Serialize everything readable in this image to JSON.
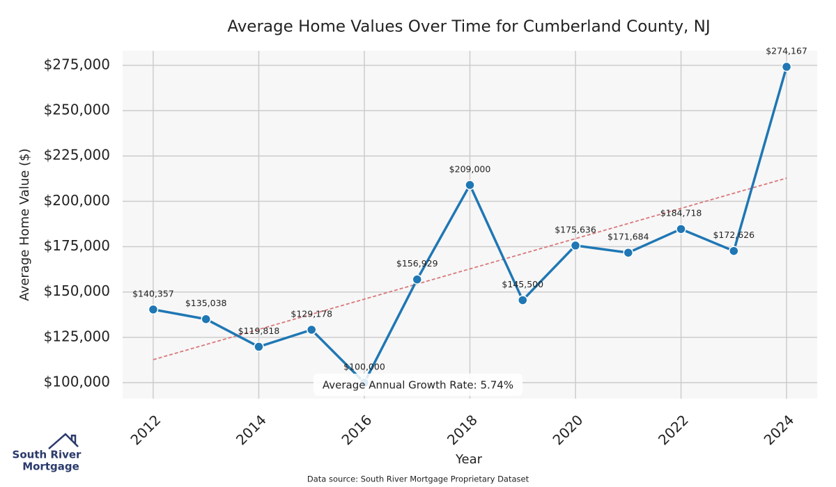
{
  "chart_data": {
    "type": "line",
    "title": "Average Home Values Over Time for Cumberland County, NJ",
    "x_label": "Year",
    "y_label": "Average Home Value ($)",
    "x": [
      2012,
      2013,
      2014,
      2015,
      2016,
      2017,
      2018,
      2019,
      2020,
      2021,
      2022,
      2023,
      2024
    ],
    "values": [
      140357,
      135038,
      119818,
      129178,
      100000,
      156929,
      209000,
      145500,
      175636,
      171684,
      184718,
      172626,
      274167
    ],
    "value_labels": [
      "$140,357",
      "$135,038",
      "$119,818",
      "$129,178",
      "$100,000",
      "$156,929",
      "$209,000",
      "$145,500",
      "$175,636",
      "$171,684",
      "$184,718",
      "$172,626",
      "$274,167"
    ],
    "color": "#1f77b4",
    "trend": {
      "x": [
        2012,
        2024
      ],
      "values": [
        112700,
        212800
      ],
      "color": "#d9777a"
    },
    "annotation": "Average Annual Growth Rate: 5.74%",
    "xlim": [
      2011.42,
      2024.58
    ],
    "xticks": [
      2012,
      2014,
      2016,
      2018,
      2020,
      2022,
      2024
    ],
    "ylim": [
      91200,
      283000
    ],
    "yticks": [
      {
        "value": 100000,
        "label": "$100,000"
      },
      {
        "value": 125000,
        "label": "$125,000"
      },
      {
        "value": 150000,
        "label": "$150,000"
      },
      {
        "value": 175000,
        "label": "$175,000"
      },
      {
        "value": 200000,
        "label": "$200,000"
      },
      {
        "value": 225000,
        "label": "$225,000"
      },
      {
        "value": 250000,
        "label": "$250,000"
      },
      {
        "value": 275000,
        "label": "$275,000"
      }
    ],
    "grid": true
  },
  "logo": {
    "line1": "South River",
    "line2": "Mortgage"
  },
  "source": "Data source: South River Mortgage Proprietary Dataset"
}
